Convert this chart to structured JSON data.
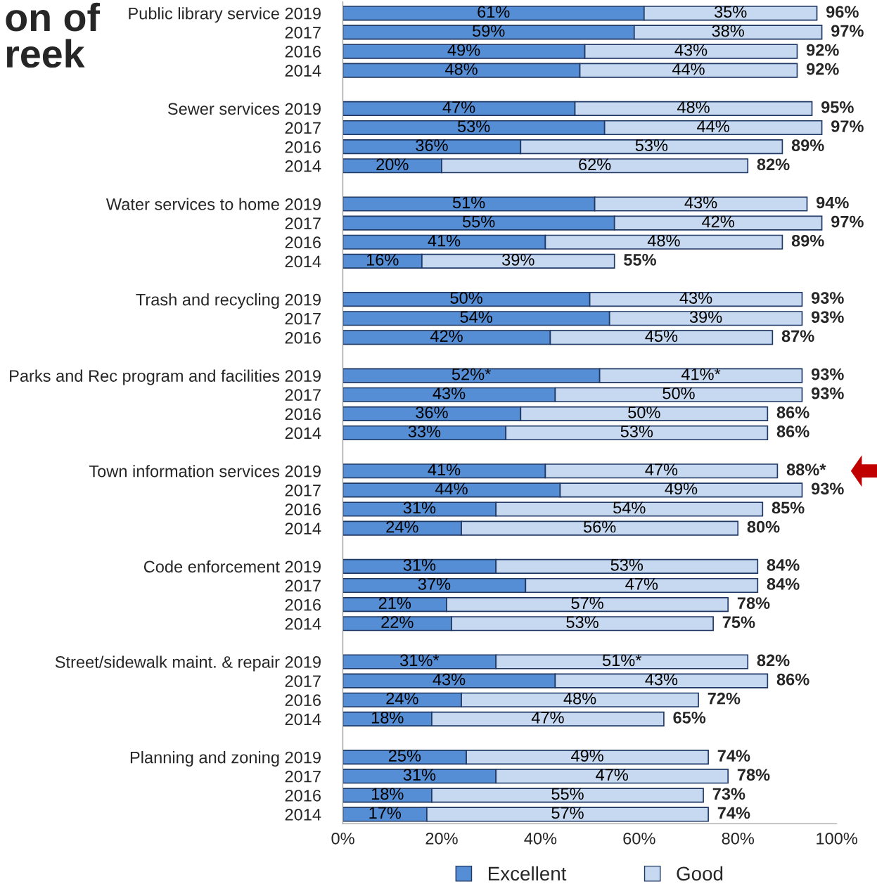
{
  "chart_data": {
    "type": "bar",
    "orientation": "horizontal",
    "stacked": true,
    "title": "on of\nreek",
    "categories": [
      "Public library service 2019",
      "2017",
      "2016",
      "2014",
      null,
      "Sewer services 2019",
      "2017",
      "2016",
      "2014",
      null,
      "Water services to home 2019",
      "2017",
      "2016",
      "2014",
      null,
      "Trash and recycling 2019",
      "2017",
      "2016",
      null,
      "Parks and Rec program and facilities 2019",
      "2017",
      "2016",
      "2014",
      null,
      "Town information services 2019",
      "2017",
      "2016",
      "2014",
      null,
      "Code enforcement 2019",
      "2017",
      "2016",
      "2014",
      null,
      "Street/sidewalk maint. & repair 2019",
      "2017",
      "2016",
      "2014",
      null,
      "Planning and zoning 2019",
      "2017",
      "2016",
      "2014"
    ],
    "series": [
      {
        "name": "Excellent",
        "color": "#558ed5",
        "values": [
          61,
          59,
          49,
          48,
          null,
          47,
          53,
          36,
          20,
          null,
          51,
          55,
          41,
          16,
          null,
          50,
          54,
          42,
          null,
          52,
          43,
          36,
          33,
          null,
          41,
          44,
          31,
          24,
          null,
          31,
          37,
          21,
          22,
          null,
          31,
          43,
          24,
          18,
          null,
          25,
          31,
          18,
          17
        ],
        "value_labels": [
          "61%",
          "59%",
          "49%",
          "48%",
          null,
          "47%",
          "53%",
          "36%",
          "20%",
          null,
          "51%",
          "55%",
          "41%",
          "16%",
          null,
          "50%",
          "54%",
          "42%",
          null,
          "52%*",
          "43%",
          "36%",
          "33%",
          null,
          "41%",
          "44%",
          "31%",
          "24%",
          null,
          "31%",
          "37%",
          "21%",
          "22%",
          null,
          "31%*",
          "43%",
          "24%",
          "18%",
          null,
          "25%",
          "31%",
          "18%",
          "17%"
        ]
      },
      {
        "name": "Good",
        "color": "#c6d9f1",
        "values": [
          35,
          38,
          43,
          44,
          null,
          48,
          44,
          53,
          62,
          null,
          43,
          42,
          48,
          39,
          null,
          43,
          39,
          45,
          null,
          41,
          50,
          50,
          53,
          null,
          47,
          49,
          54,
          56,
          null,
          53,
          47,
          57,
          53,
          null,
          51,
          43,
          48,
          47,
          null,
          49,
          47,
          55,
          57
        ],
        "value_labels": [
          "35%",
          "38%",
          "43%",
          "44%",
          null,
          "48%",
          "44%",
          "53%",
          "62%",
          null,
          "43%",
          "42%",
          "48%",
          "39%",
          null,
          "43%",
          "39%",
          "45%",
          null,
          "41%*",
          "50%",
          "50%",
          "53%",
          null,
          "47%",
          "49%",
          "54%",
          "56%",
          null,
          "53%",
          "47%",
          "57%",
          "53%",
          null,
          "51%*",
          "43%",
          "48%",
          "47%",
          null,
          "49%",
          "47%",
          "55%",
          "57%"
        ]
      }
    ],
    "totals": [
      "96%",
      "97%",
      "92%",
      "92%",
      null,
      "95%",
      "97%",
      "89%",
      "82%",
      null,
      "94%",
      "97%",
      "89%",
      "55%",
      null,
      "93%",
      "93%",
      "87%",
      null,
      "93%",
      "93%",
      "86%",
      "86%",
      null,
      "88%*",
      "93%",
      "85%",
      "80%",
      null,
      "84%",
      "84%",
      "78%",
      "75%",
      null,
      "82%",
      "86%",
      "72%",
      "65%",
      null,
      "74%",
      "78%",
      "73%",
      "74%"
    ],
    "xlim": [
      0,
      100
    ],
    "xticks": [
      {
        "value": 0,
        "label": "0%"
      },
      {
        "value": 20,
        "label": "20%"
      },
      {
        "value": 40,
        "label": "40%"
      },
      {
        "value": 60,
        "label": "60%"
      },
      {
        "value": 80,
        "label": "80%"
      },
      {
        "value": 100,
        "label": "100%"
      }
    ],
    "legend": "bottom",
    "grid": false
  }
}
